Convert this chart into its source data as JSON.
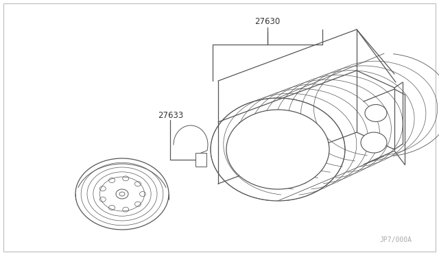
{
  "background_color": "#ffffff",
  "border_color": "#bbbbbb",
  "label_27630": "27630",
  "label_27633": "27633",
  "watermark": "JP7/000A",
  "line_color": "#444444",
  "diagram_color": "#555555",
  "lw_main": 0.9,
  "lw_thin": 0.6,
  "lw_border": 0.8
}
